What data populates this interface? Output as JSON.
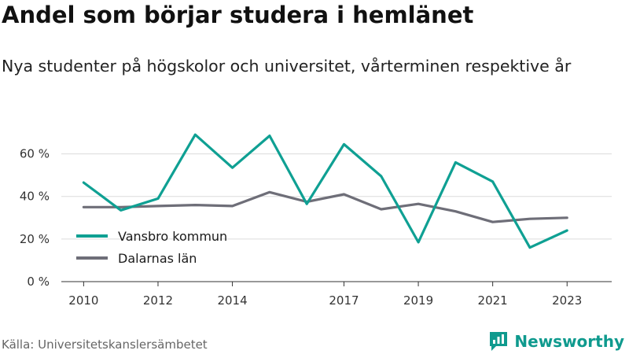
{
  "title": "Andel som börjar studera i hemlänet",
  "subtitle": "Nya studenter på högskolor och universitet, vårterminen respektive år",
  "source": "Källa: Universitetskanslersämbetet",
  "brand": {
    "name": "Newsworthy",
    "color": "#0f9a8e"
  },
  "chart_data": {
    "type": "line",
    "x": [
      2010,
      2011,
      2012,
      2013,
      2014,
      2015,
      2016,
      2017,
      2018,
      2019,
      2020,
      2021,
      2022,
      2023
    ],
    "x_ticks": [
      2010,
      2012,
      2014,
      2017,
      2019,
      2021,
      2023
    ],
    "y_ticks": [
      0,
      20,
      40,
      60
    ],
    "y_tick_labels": [
      "0 %",
      "20 %",
      "40 %",
      "60 %"
    ],
    "ylim": [
      0,
      75
    ],
    "grid": true,
    "legend_position": "bottom-left",
    "series": [
      {
        "name": "Vansbro kommun",
        "color": "#0fa093",
        "values": [
          46.5,
          33.5,
          39,
          69,
          53.5,
          68.5,
          36.5,
          64.5,
          49.5,
          18.5,
          56,
          47,
          16,
          24
        ]
      },
      {
        "name": "Dalarnas län",
        "color": "#6e6e78",
        "values": [
          35,
          35,
          35.5,
          36,
          35.5,
          42,
          37.5,
          41,
          34,
          36.5,
          33,
          28,
          29.5,
          30
        ]
      }
    ]
  }
}
